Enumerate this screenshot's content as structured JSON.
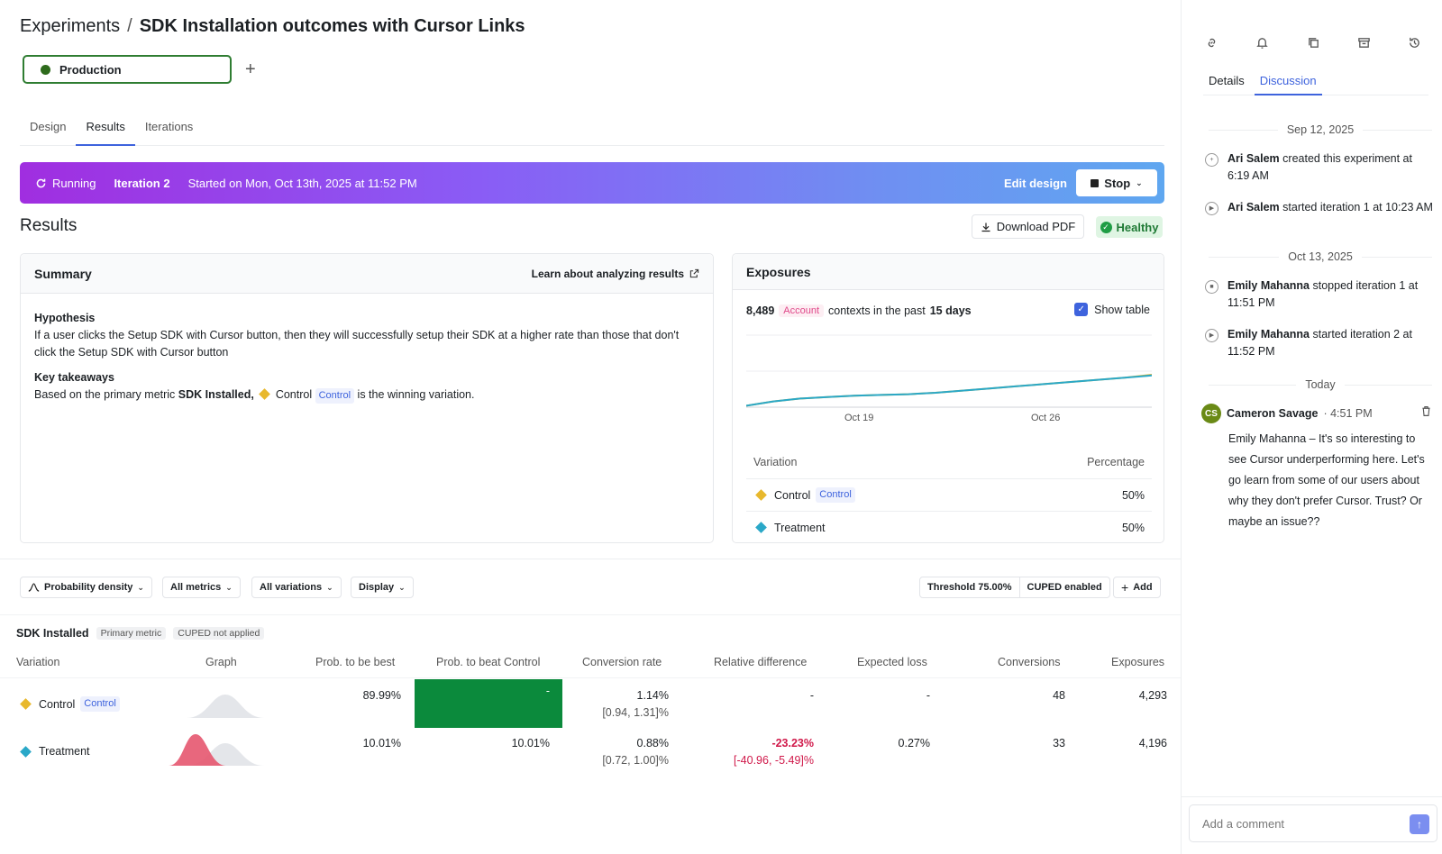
{
  "header": {
    "breadcrumb_root": "Experiments",
    "breadcrumb_sep": "/",
    "title": "SDK Installation outcomes with Cursor Links",
    "environment": "Production",
    "add_icon": "plus-icon"
  },
  "tabs": [
    {
      "label": "Design"
    },
    {
      "label": "Results"
    },
    {
      "label": "Iterations"
    }
  ],
  "banner": {
    "status": "Running",
    "iteration": "Iteration 2",
    "started": "Started on Mon, Oct 13th, 2025 at 11:52 PM",
    "edit_label": "Edit design",
    "stop_label": "Stop"
  },
  "results": {
    "title": "Results",
    "download_label": "Download PDF",
    "health_label": "Healthy"
  },
  "summary": {
    "title": "Summary",
    "learn_label": "Learn about analyzing results",
    "hypothesis_label": "Hypothesis",
    "hypothesis_text": "If a user clicks the Setup SDK with Cursor button, then they will successfully setup their SDK at a higher rate than those that don't click the Setup SDK with Cursor button",
    "takeaways_label": "Key takeaways",
    "takeaway_prefix": "Based on the primary metric",
    "takeaway_metric": "SDK Installed,",
    "takeaway_variation": "Control",
    "takeaway_badge": "Control",
    "takeaway_suffix": "is the winning variation."
  },
  "exposures": {
    "title": "Exposures",
    "count": "8,489",
    "unit_badge": "Account",
    "contexts_text": "contexts in the past",
    "period": "15 days",
    "show_table_label": "Show table",
    "x_ticks": [
      "Oct 19",
      "Oct 26"
    ],
    "col_variation": "Variation",
    "col_percentage": "Percentage",
    "rows": [
      {
        "name": "Control",
        "badge": "Control",
        "pct": "50%"
      },
      {
        "name": "Treatment",
        "badge": "",
        "pct": "50%"
      }
    ],
    "colors": {
      "control": "#e8b82d",
      "treatment": "#2aa8c8"
    }
  },
  "chart_data": {
    "type": "line",
    "x": [
      "Oct 13",
      "Oct 14",
      "Oct 15",
      "Oct 16",
      "Oct 17",
      "Oct 18",
      "Oct 19",
      "Oct 20",
      "Oct 21",
      "Oct 22",
      "Oct 23",
      "Oct 24",
      "Oct 25",
      "Oct 26",
      "Oct 27",
      "Oct 28"
    ],
    "series": [
      {
        "name": "Control",
        "values": [
          2,
          8,
          12,
          14,
          16,
          17,
          18,
          20,
          23,
          26,
          29,
          32,
          35,
          38,
          41,
          45
        ]
      },
      {
        "name": "Treatment",
        "values": [
          2,
          8,
          12,
          14,
          16,
          17,
          18,
          20,
          23,
          26,
          29,
          32,
          35,
          38,
          41,
          44
        ]
      }
    ],
    "ylim": [
      0,
      100
    ],
    "grid": true
  },
  "controls": {
    "display_mode": "Probability density",
    "metrics": "All metrics",
    "variations": "All variations",
    "display": "Display",
    "threshold": "Threshold 75.00%",
    "cuped": "CUPED enabled",
    "add_label": "Add"
  },
  "metric": {
    "name": "SDK Installed",
    "badge_primary": "Primary metric",
    "badge_cuped": "CUPED not applied",
    "columns": [
      "Variation",
      "Graph",
      "Prob. to be best",
      "Prob. to beat Control",
      "Conversion rate",
      "Relative difference",
      "Expected loss",
      "Conversions",
      "Exposures"
    ],
    "rows": [
      {
        "name": "Control",
        "badge": "Control",
        "prob_best": "89.99%",
        "prob_beat": "-",
        "conv_rate": "1.14%",
        "conv_ci": "[0.94, 1.31]%",
        "rel_diff": "-",
        "rel_ci": "",
        "exp_loss": "-",
        "conversions": "48",
        "exposures": "4,293"
      },
      {
        "name": "Treatment",
        "badge": "",
        "prob_best": "10.01%",
        "prob_beat": "10.01%",
        "conv_rate": "0.88%",
        "conv_ci": "[0.72, 1.00]%",
        "rel_diff": "-23.23%",
        "rel_ci": "[-40.96, -5.49]%",
        "exp_loss": "0.27%",
        "conversions": "33",
        "exposures": "4,196"
      }
    ]
  },
  "sidebar": {
    "icons": [
      "link-icon",
      "bell-plus-icon",
      "copy-icon",
      "archive-icon",
      "history-icon"
    ],
    "tabs": [
      {
        "label": "Details"
      },
      {
        "label": "Discussion"
      }
    ],
    "date1": "Sep 12, 2025",
    "ev1_user": "Ari Salem",
    "ev1_text": "created this experiment at 6:19 AM",
    "ev2_user": "Ari Salem",
    "ev2_text": "started iteration 1 at 10:23 AM",
    "date2": "Oct 13, 2025",
    "ev3_user": "Emily Mahanna",
    "ev3_text": "stopped iteration 1 at 11:51 PM",
    "ev4_user": "Emily Mahanna",
    "ev4_text": "started iteration 2 at 11:52 PM",
    "date3": "Today",
    "comment": {
      "initials": "CS",
      "author": "Cameron Savage",
      "time": "· 4:51 PM",
      "body": "Emily Mahanna – It's so interesting to see Cursor underperforming here. Let's go learn from some of our users about why they don't prefer Cursor. Trust? Or maybe an issue??"
    },
    "input_placeholder": "Add a comment"
  }
}
